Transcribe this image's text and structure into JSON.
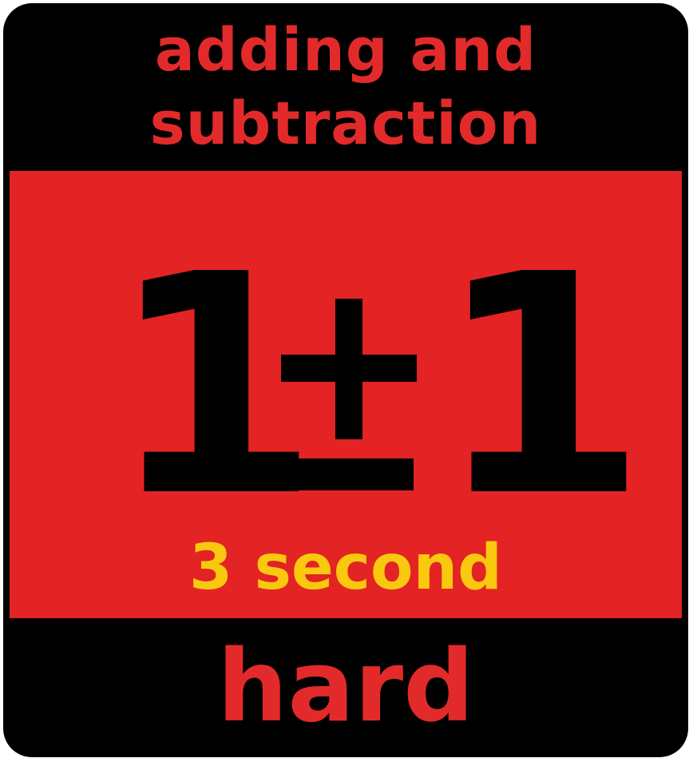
{
  "title_lines": [
    "adding and",
    "subtraction"
  ],
  "expression": {
    "left_operand": "1",
    "operator": "±",
    "right_operand": "1"
  },
  "duration": "3 second",
  "difficulty": "hard",
  "colors": {
    "background": "#000000",
    "panel": "#e32324",
    "title_text": "#e32a2a",
    "duration_text": "#f9c90f",
    "expression_text": "#000000"
  }
}
